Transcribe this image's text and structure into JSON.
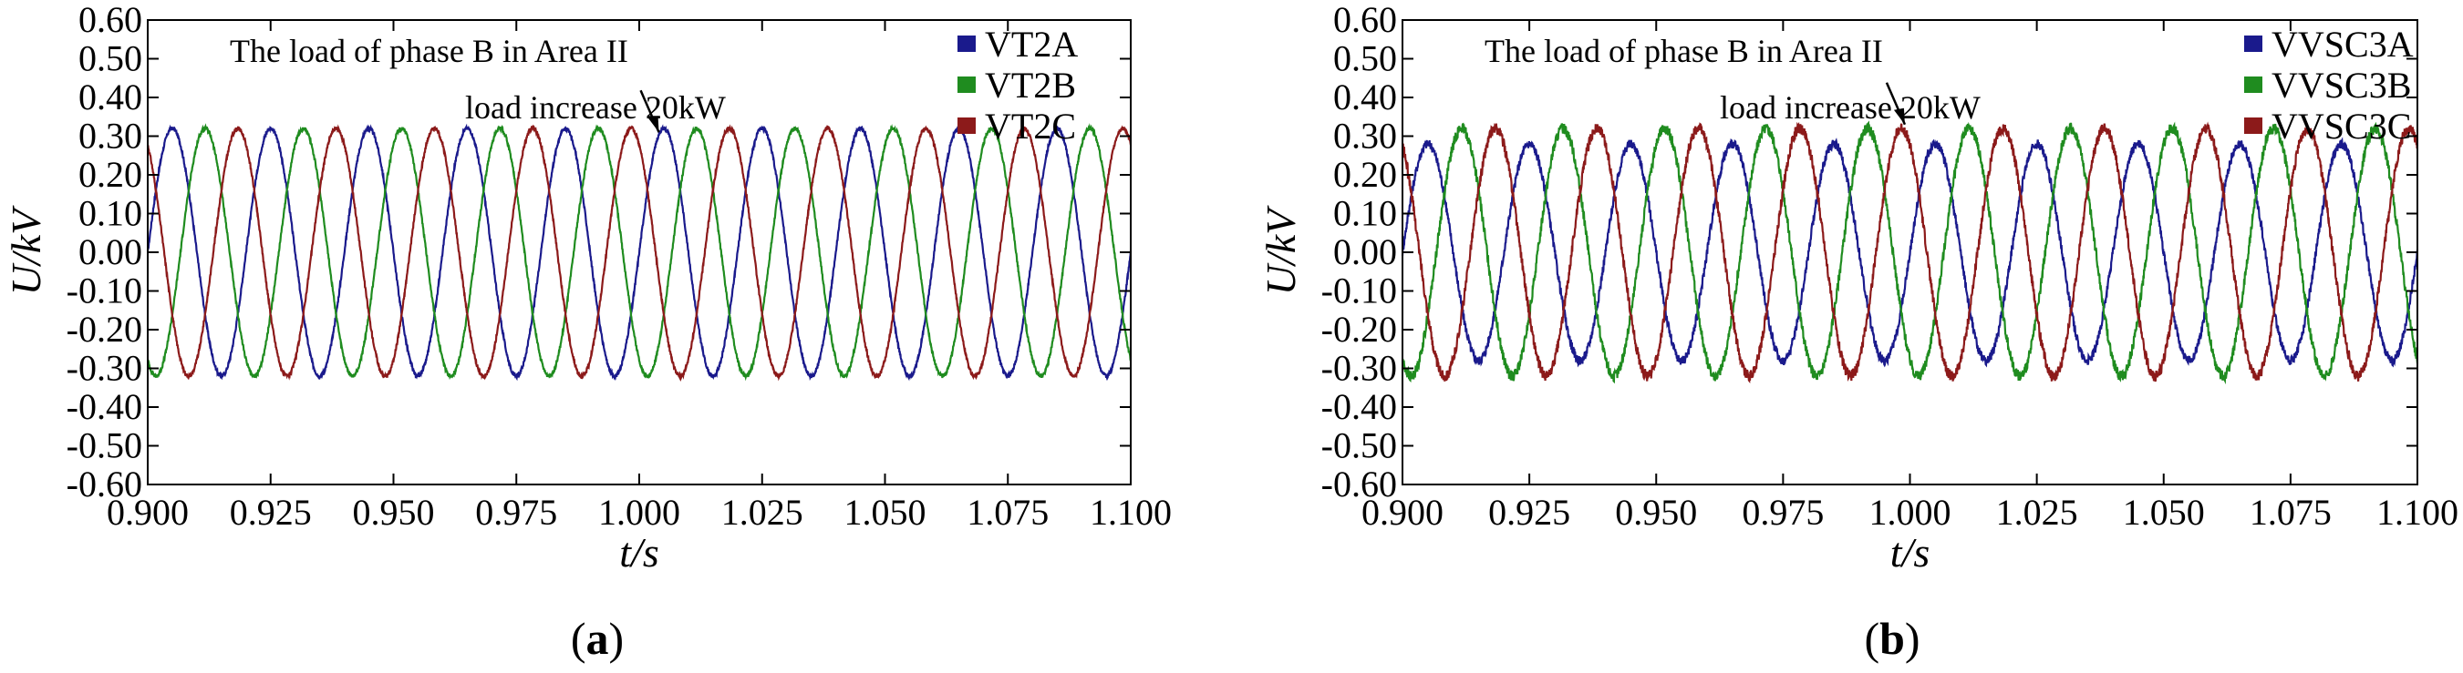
{
  "chart_data": [
    {
      "type": "line",
      "panel_label": "a",
      "xlabel": "t/s",
      "ylabel": "U/kV",
      "xlim": [
        0.9,
        1.1
      ],
      "ylim": [
        -0.6,
        0.6
      ],
      "x_ticks": [
        "0.900",
        "0.925",
        "0.950",
        "0.975",
        "1.000",
        "1.025",
        "1.050",
        "1.075",
        "1.100"
      ],
      "y_ticks": [
        "0.60",
        "0.50",
        "0.40",
        "0.30",
        "0.20",
        "0.10",
        "0.00",
        "-0.10",
        "-0.20",
        "-0.30",
        "-0.40",
        "-0.50",
        "-0.60"
      ],
      "grid": false,
      "legend_position": "top-right",
      "annotation": {
        "line1": "The load of phase B in Area II",
        "line2": "load increase 20kW",
        "arrow_target": {
          "x": 1.004,
          "y": 0.31
        }
      },
      "series": [
        {
          "name": "VT2A",
          "color": "#1a1a8c",
          "amplitude": 0.32,
          "frequency_hz": 50,
          "phase_deg": 0,
          "noise": 0.005
        },
        {
          "name": "VT2B",
          "color": "#1f8c1f",
          "amplitude": 0.32,
          "frequency_hz": 50,
          "phase_deg": -120,
          "noise": 0.005
        },
        {
          "name": "VT2C",
          "color": "#8c1a1a",
          "amplitude": 0.32,
          "frequency_hz": 50,
          "phase_deg": 120,
          "noise": 0.005
        }
      ]
    },
    {
      "type": "line",
      "panel_label": "b",
      "xlabel": "t/s",
      "ylabel": "U/kV",
      "xlim": [
        0.9,
        1.1
      ],
      "ylim": [
        -0.6,
        0.6
      ],
      "x_ticks": [
        "0.900",
        "0.925",
        "0.950",
        "0.975",
        "1.000",
        "1.025",
        "1.050",
        "1.075",
        "1.100"
      ],
      "y_ticks": [
        "0.60",
        "0.50",
        "0.40",
        "0.30",
        "0.20",
        "0.10",
        "0.00",
        "-0.10",
        "-0.20",
        "-0.30",
        "-0.40",
        "-0.50",
        "-0.60"
      ],
      "grid": false,
      "legend_position": "top-right",
      "annotation": {
        "line1": "The load of phase B in Area II",
        "line2": "load increase 20kW",
        "arrow_target": {
          "x": 0.999,
          "y": 0.33
        }
      },
      "series": [
        {
          "name": "VVSC3A",
          "color": "#1a1a8c",
          "amplitude": 0.28,
          "frequency_hz": 50,
          "phase_deg": 0,
          "noise": 0.012
        },
        {
          "name": "VVSC3B",
          "color": "#1f8c1f",
          "amplitude": 0.32,
          "frequency_hz": 50,
          "phase_deg": -120,
          "noise": 0.014
        },
        {
          "name": "VVSC3C",
          "color": "#8c1a1a",
          "amplitude": 0.32,
          "frequency_hz": 50,
          "phase_deg": 120,
          "noise": 0.014
        }
      ]
    }
  ]
}
